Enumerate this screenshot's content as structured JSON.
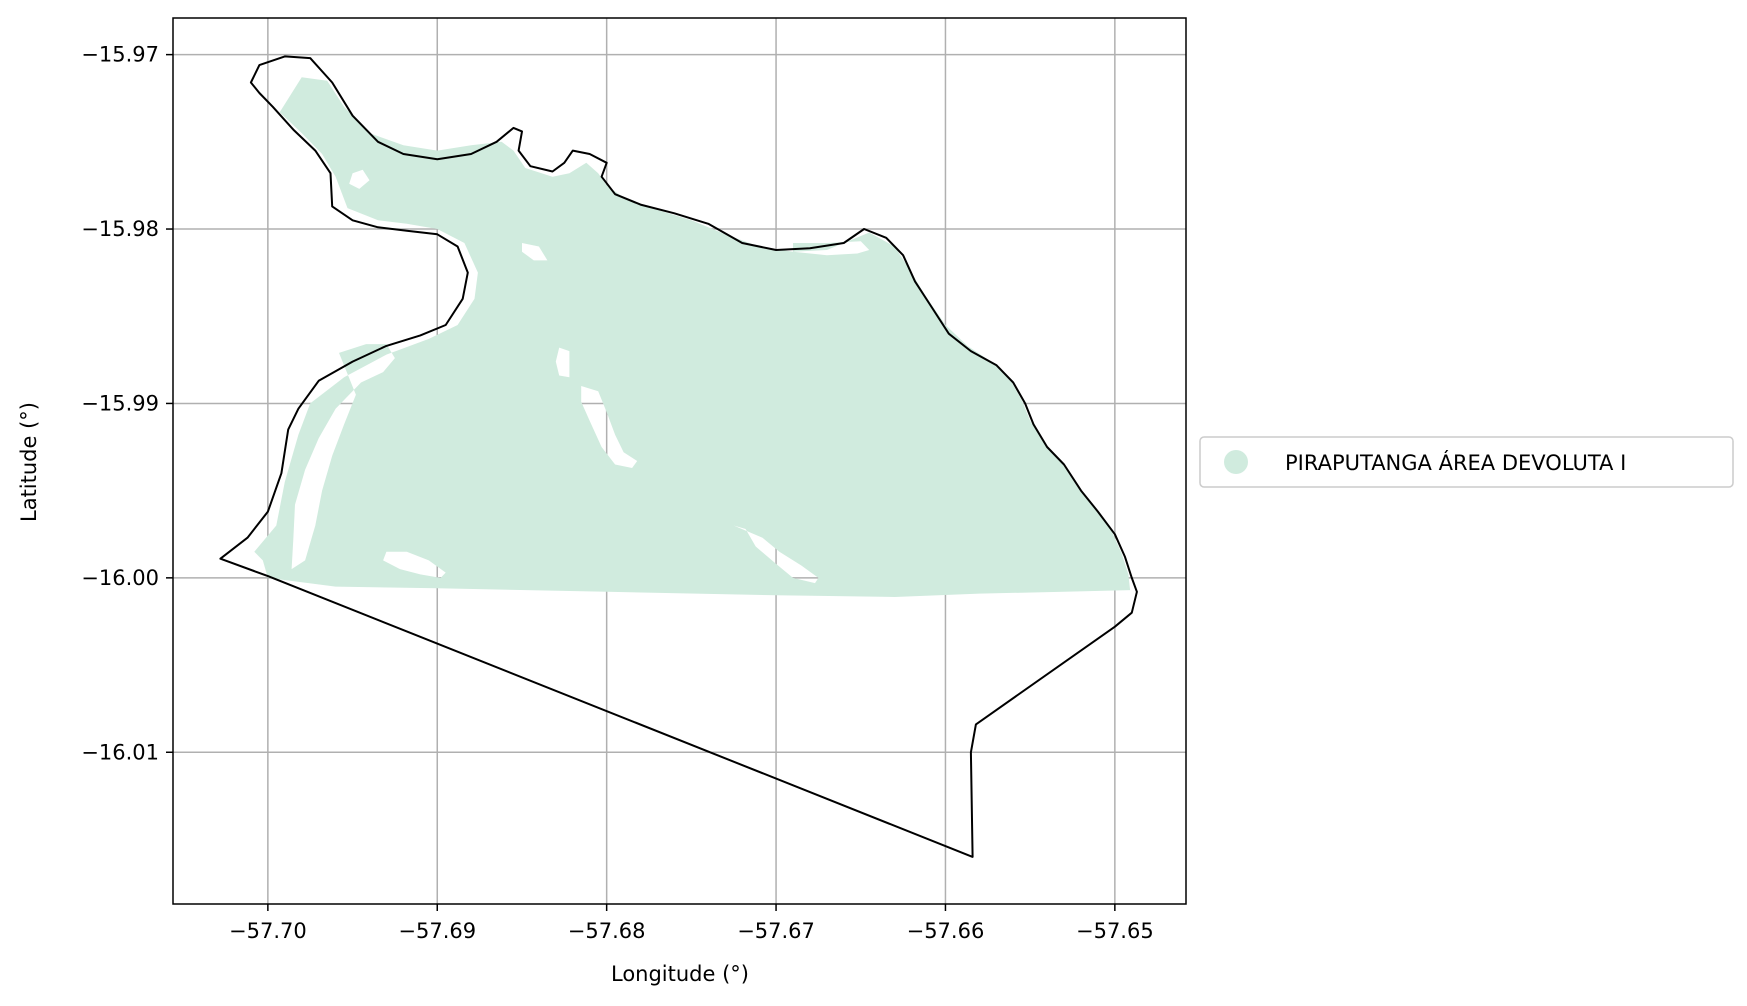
{
  "map": {
    "xlabel": "Longitude (°)",
    "ylabel": "Latitude (°)",
    "x_ticks": [
      {
        "value": -57.7,
        "label": "−57.70"
      },
      {
        "value": -57.69,
        "label": "−57.69"
      },
      {
        "value": -57.68,
        "label": "−57.68"
      },
      {
        "value": -57.67,
        "label": "−57.67"
      },
      {
        "value": -57.66,
        "label": "−57.66"
      },
      {
        "value": -57.65,
        "label": "−57.65"
      }
    ],
    "y_ticks": [
      {
        "value": -15.97,
        "label": "−15.97"
      },
      {
        "value": -15.98,
        "label": "−15.98"
      },
      {
        "value": -15.99,
        "label": "−15.99"
      },
      {
        "value": -16.0,
        "label": "−16.00"
      },
      {
        "value": -16.01,
        "label": "−16.01"
      }
    ],
    "xlim": [
      -57.7056,
      -57.6458
    ],
    "ylim": [
      -16.0187,
      -15.9679
    ],
    "grid": true,
    "legend": {
      "placement": "right-center",
      "entries": [
        {
          "label": "PIRAPUTANGA ÁREA DEVOLUTA I",
          "color": "#d0ebde"
        }
      ]
    },
    "colors": {
      "fill": "#d0ebde",
      "boundary": "#000000",
      "grid": "#b0b0b0"
    },
    "boundary_lonlat": [
      [
        -57.7028,
        -15.9989
      ],
      [
        -57.7012,
        -15.9977
      ],
      [
        -57.7,
        -15.9962
      ],
      [
        -57.6992,
        -15.994
      ],
      [
        -57.6988,
        -15.9915
      ],
      [
        -57.6982,
        -15.9903
      ],
      [
        -57.697,
        -15.9887
      ],
      [
        -57.695,
        -15.9876
      ],
      [
        -57.693,
        -15.9867
      ],
      [
        -57.691,
        -15.9861
      ],
      [
        -57.6895,
        -15.9855
      ],
      [
        -57.6885,
        -15.984
      ],
      [
        -57.6882,
        -15.9825
      ],
      [
        -57.6888,
        -15.981
      ],
      [
        -57.69,
        -15.9803
      ],
      [
        -57.6918,
        -15.9801
      ],
      [
        -57.6935,
        -15.9799
      ],
      [
        -57.695,
        -15.9795
      ],
      [
        -57.6962,
        -15.9787
      ],
      [
        -57.6963,
        -15.9768
      ],
      [
        -57.6972,
        -15.9755
      ],
      [
        -57.6985,
        -15.9743
      ],
      [
        -57.6997,
        -15.973
      ],
      [
        -57.7005,
        -15.9722
      ],
      [
        -57.701,
        -15.9716
      ],
      [
        -57.7005,
        -15.9706
      ],
      [
        -57.699,
        -15.9701
      ],
      [
        -57.6975,
        -15.9702
      ],
      [
        -57.6962,
        -15.9716
      ],
      [
        -57.695,
        -15.9735
      ],
      [
        -57.6935,
        -15.975
      ],
      [
        -57.692,
        -15.9757
      ],
      [
        -57.69,
        -15.976
      ],
      [
        -57.688,
        -15.9757
      ],
      [
        -57.6865,
        -15.975
      ],
      [
        -57.6855,
        -15.9742
      ],
      [
        -57.685,
        -15.9744
      ],
      [
        -57.6852,
        -15.9755
      ],
      [
        -57.6845,
        -15.9764
      ],
      [
        -57.6832,
        -15.9767
      ],
      [
        -57.6825,
        -15.9762
      ],
      [
        -57.682,
        -15.9755
      ],
      [
        -57.681,
        -15.9757
      ],
      [
        -57.68,
        -15.9762
      ],
      [
        -57.6803,
        -15.977
      ],
      [
        -57.6795,
        -15.978
      ],
      [
        -57.678,
        -15.9786
      ],
      [
        -57.676,
        -15.9791
      ],
      [
        -57.674,
        -15.9797
      ],
      [
        -57.672,
        -15.9808
      ],
      [
        -57.67,
        -15.9812
      ],
      [
        -57.668,
        -15.9811
      ],
      [
        -57.666,
        -15.9808
      ],
      [
        -57.6648,
        -15.98
      ],
      [
        -57.6635,
        -15.9805
      ],
      [
        -57.6625,
        -15.9815
      ],
      [
        -57.6618,
        -15.983
      ],
      [
        -57.6608,
        -15.9845
      ],
      [
        -57.6598,
        -15.986
      ],
      [
        -57.6585,
        -15.987
      ],
      [
        -57.657,
        -15.9878
      ],
      [
        -57.656,
        -15.9888
      ],
      [
        -57.6553,
        -15.99
      ],
      [
        -57.6548,
        -15.9912
      ],
      [
        -57.654,
        -15.9925
      ],
      [
        -57.653,
        -15.9935
      ],
      [
        -57.652,
        -15.995
      ],
      [
        -57.651,
        -15.9962
      ],
      [
        -57.65,
        -15.9975
      ],
      [
        -57.6494,
        -15.9988
      ],
      [
        -57.649,
        -16.0
      ],
      [
        -57.6487,
        -16.0008
      ],
      [
        -57.649,
        -16.002
      ],
      [
        -57.65,
        -16.0028
      ],
      [
        -57.6582,
        -16.0084
      ],
      [
        -57.6585,
        -16.01
      ],
      [
        -57.6584,
        -16.016
      ],
      [
        -57.7,
        -15.9999
      ],
      [
        -57.7028,
        -15.9989
      ]
    ],
    "fill_lonlat": [
      [
        -57.7,
        -16.0
      ],
      [
        -57.7003,
        -15.999
      ],
      [
        -57.7008,
        -15.9985
      ],
      [
        -57.6995,
        -15.997
      ],
      [
        -57.699,
        -15.9945
      ],
      [
        -57.6982,
        -15.9918
      ],
      [
        -57.6975,
        -15.99
      ],
      [
        -57.6955,
        -15.9885
      ],
      [
        -57.693,
        -15.9872
      ],
      [
        -57.6905,
        -15.9863
      ],
      [
        -57.6888,
        -15.9855
      ],
      [
        -57.6878,
        -15.984
      ],
      [
        -57.6876,
        -15.9825
      ],
      [
        -57.6884,
        -15.9808
      ],
      [
        -57.69,
        -15.98
      ],
      [
        -57.6918,
        -15.9797
      ],
      [
        -57.6935,
        -15.9795
      ],
      [
        -57.6953,
        -15.9788
      ],
      [
        -57.696,
        -15.977
      ],
      [
        -57.6968,
        -15.9757
      ],
      [
        -57.698,
        -15.9745
      ],
      [
        -57.6993,
        -15.9733
      ],
      [
        -57.698,
        -15.9713
      ],
      [
        -57.6965,
        -15.9715
      ],
      [
        -57.6955,
        -15.973
      ],
      [
        -57.694,
        -15.9745
      ],
      [
        -57.692,
        -15.9752
      ],
      [
        -57.69,
        -15.9755
      ],
      [
        -57.688,
        -15.9752
      ],
      [
        -57.6862,
        -15.975
      ],
      [
        -57.6855,
        -15.9755
      ],
      [
        -57.6848,
        -15.9765
      ],
      [
        -57.6832,
        -15.977
      ],
      [
        -57.6822,
        -15.9768
      ],
      [
        -57.6812,
        -15.9762
      ],
      [
        -57.6805,
        -15.9768
      ],
      [
        -57.68,
        -15.9775
      ],
      [
        -57.679,
        -15.9782
      ],
      [
        -57.677,
        -15.9789
      ],
      [
        -57.675,
        -15.9795
      ],
      [
        -57.673,
        -15.9803
      ],
      [
        -57.671,
        -15.981
      ],
      [
        -57.669,
        -15.9813
      ],
      [
        -57.667,
        -15.9812
      ],
      [
        -57.6655,
        -15.9806
      ],
      [
        -57.6645,
        -15.9802
      ],
      [
        -57.663,
        -15.981
      ],
      [
        -57.6622,
        -15.9822
      ],
      [
        -57.6612,
        -15.9838
      ],
      [
        -57.66,
        -15.9855
      ],
      [
        -57.6587,
        -15.9867
      ],
      [
        -57.6573,
        -15.9876
      ],
      [
        -57.6562,
        -15.9886
      ],
      [
        -57.6555,
        -15.9898
      ],
      [
        -57.655,
        -15.991
      ],
      [
        -57.6542,
        -15.9922
      ],
      [
        -57.6532,
        -15.9933
      ],
      [
        -57.6522,
        -15.9948
      ],
      [
        -57.6512,
        -15.996
      ],
      [
        -57.6502,
        -15.9973
      ],
      [
        -57.6496,
        -15.9986
      ],
      [
        -57.6492,
        -15.9998
      ],
      [
        -57.6491,
        -16.0007
      ],
      [
        -57.653,
        -16.0008
      ],
      [
        -57.658,
        -16.0009
      ],
      [
        -57.663,
        -16.0011
      ],
      [
        -57.67,
        -16.001
      ],
      [
        -57.68,
        -16.0008
      ],
      [
        -57.69,
        -16.0006
      ],
      [
        -57.696,
        -16.0005
      ],
      [
        -57.7,
        -16.0
      ]
    ],
    "gap_lonlat": [
      [
        [
          -57.6958,
          -15.9871
        ],
        [
          -57.6942,
          -15.9866
        ],
        [
          -57.693,
          -15.9866
        ],
        [
          -57.6925,
          -15.9874
        ],
        [
          -57.6932,
          -15.9882
        ],
        [
          -57.6945,
          -15.9888
        ],
        [
          -57.696,
          -15.9903
        ],
        [
          -57.697,
          -15.992
        ],
        [
          -57.6978,
          -15.9938
        ],
        [
          -57.6984,
          -15.9958
        ],
        [
          -57.6985,
          -15.9978
        ],
        [
          -57.6986,
          -15.9995
        ],
        [
          -57.6978,
          -15.999
        ],
        [
          -57.6972,
          -15.997
        ],
        [
          -57.6968,
          -15.995
        ],
        [
          -57.6962,
          -15.993
        ],
        [
          -57.6955,
          -15.9912
        ],
        [
          -57.6948,
          -15.9895
        ]
      ],
      [
        [
          -57.6828,
          -15.9868
        ],
        [
          -57.6822,
          -15.987
        ],
        [
          -57.6822,
          -15.9885
        ],
        [
          -57.6828,
          -15.9884
        ],
        [
          -57.683,
          -15.9876
        ]
      ],
      [
        [
          -57.6815,
          -15.989
        ],
        [
          -57.6805,
          -15.9893
        ],
        [
          -57.68,
          -15.9905
        ],
        [
          -57.6795,
          -15.9918
        ],
        [
          -57.679,
          -15.9928
        ],
        [
          -57.6782,
          -15.9933
        ],
        [
          -57.6785,
          -15.9937
        ],
        [
          -57.6795,
          -15.9935
        ],
        [
          -57.6803,
          -15.9925
        ],
        [
          -57.681,
          -15.991
        ],
        [
          -57.6815,
          -15.9899
        ]
      ],
      [
        [
          -57.6725,
          -15.997
        ],
        [
          -57.6718,
          -15.9972
        ],
        [
          -57.6712,
          -15.9982
        ],
        [
          -57.67,
          -15.9992
        ],
        [
          -57.669,
          -16.0
        ],
        [
          -57.6677,
          -16.0003
        ],
        [
          -57.6675,
          -16.0
        ],
        [
          -57.6685,
          -15.9993
        ],
        [
          -57.6698,
          -15.9985
        ],
        [
          -57.6708,
          -15.9977
        ]
      ],
      [
        [
          -57.693,
          -15.9985
        ],
        [
          -57.6918,
          -15.9985
        ],
        [
          -57.6905,
          -15.999
        ],
        [
          -57.6895,
          -15.9997
        ],
        [
          -57.6898,
          -16.0
        ],
        [
          -57.691,
          -15.9998
        ],
        [
          -57.6922,
          -15.9995
        ],
        [
          -57.6932,
          -15.999
        ]
      ],
      [
        [
          -57.685,
          -15.9808
        ],
        [
          -57.684,
          -15.981
        ],
        [
          -57.6835,
          -15.9818
        ],
        [
          -57.6843,
          -15.9818
        ],
        [
          -57.685,
          -15.9813
        ]
      ],
      [
        [
          -57.695,
          -15.9768
        ],
        [
          -57.6944,
          -15.9766
        ],
        [
          -57.694,
          -15.9772
        ],
        [
          -57.6946,
          -15.9777
        ],
        [
          -57.6952,
          -15.9774
        ]
      ],
      [
        [
          -57.669,
          -15.9808
        ],
        [
          -57.667,
          -15.9808
        ],
        [
          -57.665,
          -15.9807
        ],
        [
          -57.6645,
          -15.9812
        ],
        [
          -57.6652,
          -15.9814
        ],
        [
          -57.667,
          -15.9815
        ],
        [
          -57.669,
          -15.9813
        ]
      ]
    ]
  }
}
